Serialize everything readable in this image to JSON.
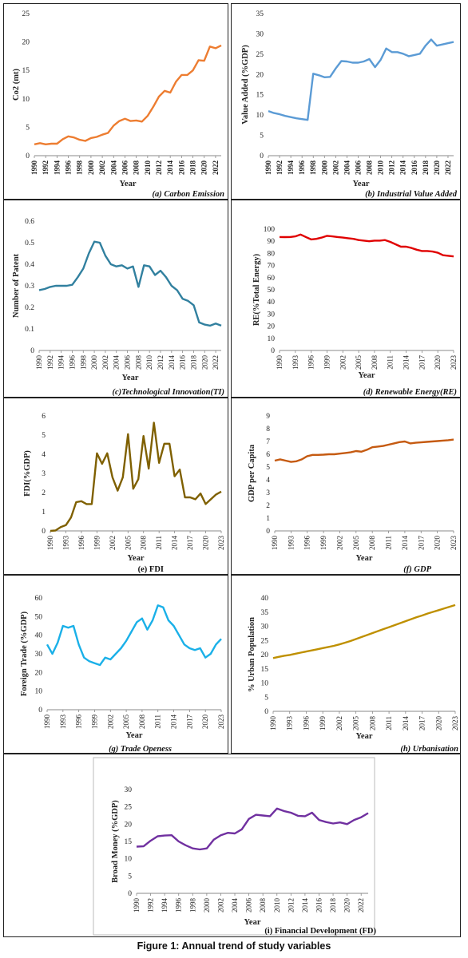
{
  "figure_title": "Figure 1: Annual trend of study variables",
  "chart_data": [
    {
      "id": "a",
      "type": "line",
      "color": "#ed7d31",
      "caption": "(a) Carbon Emission",
      "xlabel": "Year",
      "ylabel": "Co2 (mt)",
      "ylim": [
        0,
        25
      ],
      "yticks": [
        0,
        5,
        10,
        15,
        20,
        25
      ],
      "xticks": [
        "1990",
        "1992",
        "1994",
        "1996",
        "1998",
        "2000",
        "2002",
        "2004",
        "2006",
        "2008",
        "2010",
        "2012",
        "2014",
        "2016",
        "2018",
        "2020",
        "2022"
      ],
      "x": [
        1990,
        1991,
        1992,
        1993,
        1994,
        1995,
        1996,
        1997,
        1998,
        1999,
        2000,
        2001,
        2002,
        2003,
        2004,
        2005,
        2006,
        2007,
        2008,
        2009,
        2010,
        2011,
        2012,
        2013,
        2014,
        2015,
        2016,
        2017,
        2018,
        2019,
        2020,
        2021,
        2022,
        2023
      ],
      "values": [
        2.0,
        2.2,
        2.0,
        2.1,
        2.1,
        2.9,
        3.4,
        3.2,
        2.8,
        2.6,
        3.1,
        3.3,
        3.7,
        4.0,
        5.3,
        6.1,
        6.5,
        6.1,
        6.2,
        6.0,
        7.0,
        8.6,
        10.4,
        11.4,
        11.1,
        13.0,
        14.2,
        14.2,
        15.0,
        16.8,
        16.7,
        19.2,
        18.9,
        19.4
      ]
    },
    {
      "id": "b",
      "type": "line",
      "color": "#5b9bd5",
      "caption": "(b) Industrial Value Added",
      "xlabel": "Year",
      "ylabel": "Value Added (%GDP)",
      "ylim": [
        0,
        35
      ],
      "yticks": [
        0,
        5,
        10,
        15,
        20,
        25,
        30,
        35
      ],
      "xticks": [
        "1990",
        "1992",
        "1994",
        "1996",
        "1998",
        "2000",
        "2002",
        "2004",
        "2006",
        "2008",
        "2010",
        "2012",
        "2014",
        "2016",
        "2018",
        "2020",
        "2022"
      ],
      "x": [
        1990,
        1991,
        1992,
        1993,
        1994,
        1995,
        1996,
        1997,
        1998,
        1999,
        2000,
        2001,
        2002,
        2003,
        2004,
        2005,
        2006,
        2007,
        2008,
        2009,
        2010,
        2011,
        2012,
        2013,
        2014,
        2015,
        2016,
        2017,
        2018,
        2019,
        2020,
        2021,
        2022,
        2023
      ],
      "values": [
        11.0,
        10.5,
        10.2,
        9.8,
        9.5,
        9.2,
        9.0,
        8.8,
        20.2,
        19.8,
        19.3,
        19.4,
        21.5,
        23.3,
        23.2,
        22.9,
        22.9,
        23.2,
        23.8,
        21.8,
        23.6,
        26.4,
        25.5,
        25.5,
        25.1,
        24.5,
        24.8,
        25.1,
        27.1,
        28.6,
        27.1,
        27.4,
        27.7,
        28.0
      ]
    },
    {
      "id": "c",
      "type": "line",
      "color": "#31809f",
      "caption": "(c)Technological Innovation(TI)",
      "xlabel": "Year",
      "ylabel": "Number of Patent",
      "ylim": [
        0,
        0.6
      ],
      "yticks": [
        0,
        0.1,
        0.2,
        0.3,
        0.4,
        0.5,
        0.6
      ],
      "xticks": [
        "1990",
        "1992",
        "1994",
        "1996",
        "1998",
        "2000",
        "2002",
        "2004",
        "2006",
        "2008",
        "2010",
        "2012",
        "2014",
        "2016",
        "2018",
        "2020",
        "2022"
      ],
      "x": [
        1990,
        1991,
        1992,
        1993,
        1994,
        1995,
        1996,
        1997,
        1998,
        1999,
        2000,
        2001,
        2002,
        2003,
        2004,
        2005,
        2006,
        2007,
        2008,
        2009,
        2010,
        2011,
        2012,
        2013,
        2014,
        2015,
        2016,
        2017,
        2018,
        2019,
        2020,
        2021,
        2022,
        2023
      ],
      "values": [
        0.28,
        0.285,
        0.295,
        0.3,
        0.3,
        0.3,
        0.305,
        0.34,
        0.38,
        0.45,
        0.505,
        0.5,
        0.44,
        0.4,
        0.39,
        0.395,
        0.38,
        0.39,
        0.295,
        0.395,
        0.39,
        0.35,
        0.37,
        0.34,
        0.3,
        0.28,
        0.24,
        0.23,
        0.21,
        0.13,
        0.12,
        0.115,
        0.125,
        0.115
      ]
    },
    {
      "id": "d",
      "type": "line",
      "color": "#e00000",
      "caption": "(d) Renewable Energy(RE)",
      "xlabel": "Year",
      "ylabel": "RE(%Total Energy)",
      "ylim": [
        0,
        100
      ],
      "yticks": [
        0,
        10,
        20,
        30,
        40,
        50,
        60,
        70,
        80,
        90,
        100
      ],
      "xticks": [
        "1990",
        "1993",
        "1996",
        "1999",
        "2002",
        "2005",
        "2008",
        "2011",
        "2014",
        "2017",
        "2020",
        "2023"
      ],
      "x": [
        1990,
        1991,
        1992,
        1993,
        1994,
        1995,
        1996,
        1997,
        1998,
        1999,
        2000,
        2001,
        2002,
        2003,
        2004,
        2005,
        2006,
        2007,
        2008,
        2009,
        2010,
        2011,
        2012,
        2013,
        2014,
        2015,
        2016,
        2017,
        2018,
        2019,
        2020,
        2021,
        2022,
        2023
      ],
      "values": [
        93.5,
        93.4,
        93.5,
        94.0,
        95.5,
        93.5,
        91.5,
        92.0,
        93.0,
        94.5,
        94.0,
        93.5,
        93.0,
        92.5,
        92.0,
        91.0,
        90.5,
        90.0,
        90.5,
        90.5,
        91.0,
        89.5,
        87.5,
        85.5,
        85.5,
        84.5,
        83.0,
        82.0,
        82.0,
        81.5,
        80.5,
        78.5,
        78.0,
        77.5
      ]
    },
    {
      "id": "e",
      "type": "line",
      "color": "#7f6000",
      "caption": "(e) FDI",
      "xlabel": "Year",
      "ylabel": "FDI(%GDP)",
      "ylim": [
        0,
        6
      ],
      "yticks": [
        0,
        1,
        2,
        3,
        4,
        5,
        6
      ],
      "xticks": [
        "1990",
        "1993",
        "1996",
        "1999",
        "2002",
        "2005",
        "2008",
        "2011",
        "2014",
        "2017",
        "2020",
        "2023"
      ],
      "x": [
        1990,
        1991,
        1992,
        1993,
        1994,
        1995,
        1996,
        1997,
        1998,
        1999,
        2000,
        2001,
        2002,
        2003,
        2004,
        2005,
        2006,
        2007,
        2008,
        2009,
        2010,
        2011,
        2012,
        2013,
        2014,
        2015,
        2016,
        2017,
        2018,
        2019,
        2020,
        2021,
        2022,
        2023
      ],
      "values": [
        0.0,
        0.02,
        0.2,
        0.3,
        0.7,
        1.5,
        1.55,
        1.4,
        1.4,
        4.05,
        3.5,
        4.05,
        2.8,
        2.1,
        2.8,
        5.05,
        2.2,
        2.7,
        4.95,
        3.25,
        5.65,
        3.55,
        4.55,
        4.55,
        2.85,
        3.2,
        1.75,
        1.75,
        1.65,
        1.95,
        1.4,
        1.65,
        1.9,
        2.05
      ]
    },
    {
      "id": "f",
      "type": "line",
      "color": "#c55a11",
      "caption": "(f) GDP",
      "xlabel": "Year",
      "ylabel": "GDP per Capita",
      "ylim": [
        0,
        9
      ],
      "yticks": [
        0,
        1,
        2,
        3,
        4,
        5,
        6,
        7,
        8,
        9
      ],
      "xticks": [
        "1990",
        "1993",
        "1996",
        "1999",
        "2002",
        "2005",
        "2008",
        "2011",
        "2014",
        "2017",
        "2020",
        "2023"
      ],
      "x": [
        1990,
        1991,
        1992,
        1993,
        1994,
        1995,
        1996,
        1997,
        1998,
        1999,
        2000,
        2001,
        2002,
        2003,
        2004,
        2005,
        2006,
        2007,
        2008,
        2009,
        2010,
        2011,
        2012,
        2013,
        2014,
        2015,
        2016,
        2017,
        2018,
        2019,
        2020,
        2021,
        2022,
        2023
      ],
      "values": [
        5.5,
        5.6,
        5.5,
        5.4,
        5.45,
        5.6,
        5.85,
        5.95,
        5.95,
        5.97,
        6.0,
        6.0,
        6.05,
        6.1,
        6.15,
        6.25,
        6.2,
        6.35,
        6.55,
        6.6,
        6.65,
        6.75,
        6.85,
        6.95,
        7.0,
        6.85,
        6.9,
        6.93,
        6.97,
        7.0,
        7.03,
        7.07,
        7.1,
        7.15
      ]
    },
    {
      "id": "g",
      "type": "line",
      "color": "#1ab0e8",
      "caption": "(g) Trade Openess",
      "xlabel": "Year",
      "ylabel": "Foreign Trade (%GDP)",
      "ylim": [
        0,
        60
      ],
      "yticks": [
        0,
        10,
        20,
        30,
        40,
        50,
        60
      ],
      "xticks": [
        "1990",
        "1993",
        "1996",
        "1999",
        "2002",
        "2005",
        "2008",
        "2011",
        "2014",
        "2017",
        "2020",
        "2023"
      ],
      "x": [
        1990,
        1991,
        1992,
        1993,
        1994,
        1995,
        1996,
        1997,
        1998,
        1999,
        2000,
        2001,
        2002,
        2003,
        2004,
        2005,
        2006,
        2007,
        2008,
        2009,
        2010,
        2011,
        2012,
        2013,
        2014,
        2015,
        2016,
        2017,
        2018,
        2019,
        2020,
        2021,
        2022,
        2023
      ],
      "values": [
        35,
        30,
        36,
        45,
        44,
        45,
        35,
        28,
        26,
        25,
        24,
        28,
        27,
        30,
        33,
        37,
        42,
        47,
        49,
        43,
        48,
        56,
        55,
        48,
        45,
        40,
        35,
        33,
        32,
        33,
        28,
        30,
        35,
        38
      ]
    },
    {
      "id": "h",
      "type": "line",
      "color": "#bf9000",
      "caption": "(h) Urbanisation",
      "xlabel": "Year",
      "ylabel": "% Urban Population",
      "ylim": [
        0,
        40
      ],
      "yticks": [
        0,
        5,
        10,
        15,
        20,
        25,
        30,
        35,
        40
      ],
      "xticks": [
        "1990",
        "1993",
        "1996",
        "1999",
        "2002",
        "2005",
        "2008",
        "2011",
        "2014",
        "2017",
        "2020",
        "2023"
      ],
      "x": [
        1990,
        1991,
        1992,
        1993,
        1994,
        1995,
        1996,
        1997,
        1998,
        1999,
        2000,
        2001,
        2002,
        2003,
        2004,
        2005,
        2006,
        2007,
        2008,
        2009,
        2010,
        2011,
        2012,
        2013,
        2014,
        2015,
        2016,
        2017,
        2018,
        2019,
        2020,
        2021,
        2022,
        2023
      ],
      "values": [
        18.8,
        19.2,
        19.6,
        19.9,
        20.3,
        20.7,
        21.1,
        21.5,
        21.9,
        22.3,
        22.7,
        23.1,
        23.6,
        24.2,
        24.8,
        25.5,
        26.2,
        26.9,
        27.6,
        28.3,
        29.0,
        29.7,
        30.4,
        31.1,
        31.8,
        32.5,
        33.2,
        33.8,
        34.5,
        35.1,
        35.7,
        36.3,
        36.9,
        37.5
      ]
    },
    {
      "id": "i",
      "type": "line",
      "color": "#7030a0",
      "caption": "(i) Financial Development (FD)",
      "xlabel": "Year",
      "ylabel": "Broad Money (%GDP)",
      "ylim": [
        0,
        30
      ],
      "yticks": [
        0,
        5,
        10,
        15,
        20,
        25,
        30
      ],
      "xticks": [
        "1990",
        "1992",
        "1994",
        "1996",
        "1998",
        "2000",
        "2002",
        "2004",
        "2006",
        "2008",
        "2010",
        "2012",
        "2014",
        "2016",
        "2018",
        "2020",
        "2022"
      ],
      "x": [
        1990,
        1991,
        1992,
        1993,
        1994,
        1995,
        1996,
        1997,
        1998,
        1999,
        2000,
        2001,
        2002,
        2003,
        2004,
        2005,
        2006,
        2007,
        2008,
        2009,
        2010,
        2011,
        2012,
        2013,
        2014,
        2015,
        2016,
        2017,
        2018,
        2019,
        2020,
        2021,
        2022,
        2023
      ],
      "values": [
        13.5,
        13.6,
        15.2,
        16.5,
        16.7,
        16.8,
        15.0,
        13.9,
        13.0,
        12.7,
        13.0,
        15.5,
        16.8,
        17.5,
        17.3,
        18.5,
        21.5,
        22.7,
        22.5,
        22.3,
        24.5,
        23.8,
        23.3,
        22.4,
        22.3,
        23.3,
        21.2,
        20.6,
        20.2,
        20.5,
        20.0,
        21.2,
        22.0,
        23.2
      ]
    }
  ]
}
